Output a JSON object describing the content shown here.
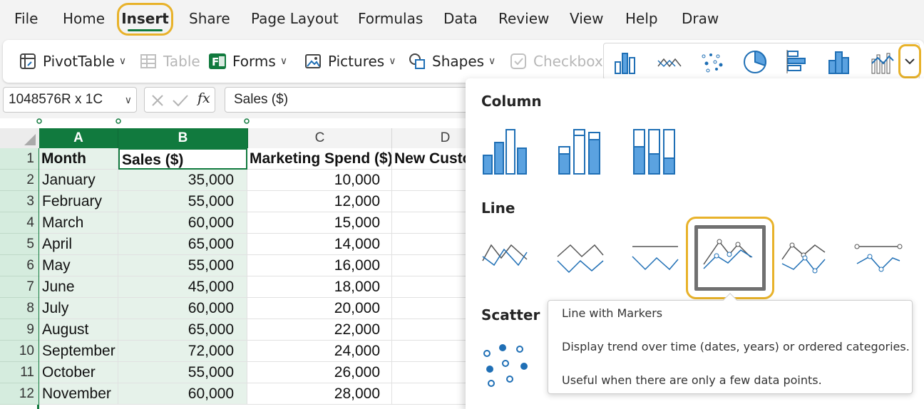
{
  "menu": {
    "file": "File",
    "home": "Home",
    "insert": "Insert",
    "share": "Share",
    "page_layout": "Page Layout",
    "formulas": "Formulas",
    "data": "Data",
    "review": "Review",
    "view": "View",
    "help": "Help",
    "draw": "Draw"
  },
  "ribbon": {
    "pivottable": "PivotTable",
    "table": "Table",
    "forms": "Forms",
    "pictures": "Pictures",
    "shapes": "Shapes",
    "checkbox": "Checkbox"
  },
  "formula_bar": {
    "name_box": "1048576R x 1C",
    "fx": "fx",
    "content": "Sales ($)"
  },
  "grid": {
    "columns": [
      "A",
      "B",
      "C",
      "D"
    ],
    "rows": [
      {
        "n": "1",
        "a": "Month",
        "b": "Sales ($)",
        "c": "Marketing Spend ($)",
        "d": "New Custo"
      },
      {
        "n": "2",
        "a": "January",
        "b": "35,000",
        "c": "10,000",
        "d": ""
      },
      {
        "n": "3",
        "a": "February",
        "b": "55,000",
        "c": "12,000",
        "d": ""
      },
      {
        "n": "4",
        "a": "March",
        "b": "60,000",
        "c": "15,000",
        "d": ""
      },
      {
        "n": "5",
        "a": "April",
        "b": "65,000",
        "c": "14,000",
        "d": ""
      },
      {
        "n": "6",
        "a": "May",
        "b": "55,000",
        "c": "16,000",
        "d": ""
      },
      {
        "n": "7",
        "a": "June",
        "b": "45,000",
        "c": "18,000",
        "d": ""
      },
      {
        "n": "8",
        "a": "July",
        "b": "60,000",
        "c": "20,000",
        "d": ""
      },
      {
        "n": "9",
        "a": "August",
        "b": "65,000",
        "c": "22,000",
        "d": ""
      },
      {
        "n": "10",
        "a": "September",
        "b": "72,000",
        "c": "24,000",
        "d": ""
      },
      {
        "n": "11",
        "a": "October",
        "b": "55,000",
        "c": "26,000",
        "d": ""
      },
      {
        "n": "12",
        "a": "November",
        "b": "60,000",
        "c": "28,000",
        "d": ""
      }
    ]
  },
  "dropdown": {
    "column_section": "Column",
    "line_section": "Line",
    "scatter_section": "Scatter"
  },
  "tooltip": {
    "title": "Line with Markers",
    "line1": "Display trend over time (dates, years) or ordered categories.",
    "line2": "Useful when there are only a few data points."
  },
  "colors": {
    "accent_green": "#117a3e",
    "highlight": "#e8b22a",
    "chart_blue": "#1f6fb5",
    "chart_fill": "#5ba2e0"
  }
}
